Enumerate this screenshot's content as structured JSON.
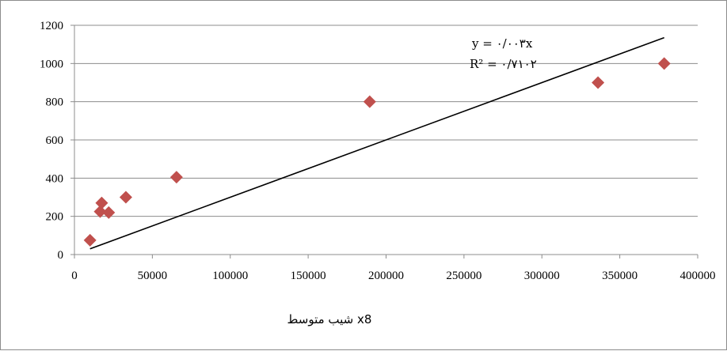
{
  "chart_data": {
    "type": "scatter",
    "title": "",
    "xlabel": "شیب متوسط x8",
    "ylabel": "",
    "xlim": [
      0,
      400000
    ],
    "ylim": [
      0,
      1200
    ],
    "x_ticks": [
      "0",
      "50000",
      "100000",
      "150000",
      "200000",
      "250000",
      "300000",
      "350000",
      "400000"
    ],
    "y_ticks": [
      "0",
      "200",
      "400",
      "600",
      "800",
      "1000",
      "1200"
    ],
    "grid": "horizontal",
    "legend": "none",
    "marker_color": "#C0504D",
    "marker_shape": "diamond",
    "line_color": "#000000",
    "points": [
      {
        "x": 10000,
        "y": 75
      },
      {
        "x": 16500,
        "y": 225
      },
      {
        "x": 17500,
        "y": 270
      },
      {
        "x": 22000,
        "y": 220
      },
      {
        "x": 33000,
        "y": 300
      },
      {
        "x": 65500,
        "y": 405
      },
      {
        "x": 189500,
        "y": 800
      },
      {
        "x": 336000,
        "y": 900
      },
      {
        "x": 378500,
        "y": 1000
      }
    ],
    "trendline": {
      "type": "linear",
      "slope": 0.003,
      "x_start": 10000,
      "x_end": 378500,
      "equation_label": "y = ۰/۰۰۳x",
      "r2_label": "R² = ۰/۷۱۰۲"
    }
  }
}
